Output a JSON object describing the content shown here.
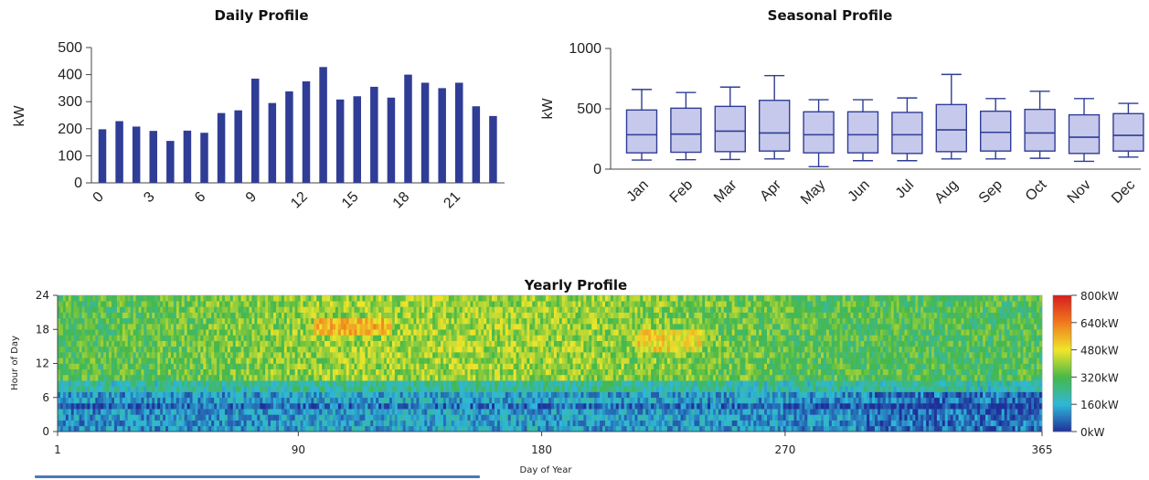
{
  "colors": {
    "bar_fill": "#2f3d96",
    "box_fill": "#c7c9ec",
    "box_stroke": "#2f3d96",
    "axis": "#444444"
  },
  "chart_data": [
    {
      "type": "bar",
      "title": "Daily Profile",
      "ylabel": "kW",
      "xlabel": "",
      "ylim": [
        0,
        500
      ],
      "yticks": [
        0,
        100,
        200,
        300,
        400,
        500
      ],
      "categories": [
        0,
        1,
        2,
        3,
        4,
        5,
        6,
        7,
        8,
        9,
        10,
        11,
        12,
        13,
        14,
        15,
        16,
        17,
        18,
        19,
        20,
        21,
        22,
        23
      ],
      "xtick_labels": [
        "0",
        "3",
        "6",
        "9",
        "12",
        "15",
        "18",
        "21"
      ],
      "values": [
        198,
        228,
        208,
        192,
        155,
        193,
        185,
        258,
        268,
        385,
        295,
        338,
        375,
        428,
        308,
        320,
        355,
        315,
        400,
        370,
        350,
        370,
        283,
        247
      ],
      "grid": false
    },
    {
      "type": "box",
      "title": "Seasonal Profile",
      "ylabel": "kW",
      "xlabel": "",
      "ylim": [
        0,
        1000
      ],
      "yticks": [
        0,
        500,
        1000
      ],
      "categories": [
        "Jan",
        "Feb",
        "Mar",
        "Apr",
        "May",
        "Jun",
        "Jul",
        "Aug",
        "Sep",
        "Oct",
        "Nov",
        "Dec"
      ],
      "boxes": [
        {
          "min": 75,
          "q1": 135,
          "median": 285,
          "q3": 490,
          "max": 660
        },
        {
          "min": 78,
          "q1": 140,
          "median": 290,
          "q3": 505,
          "max": 635
        },
        {
          "min": 80,
          "q1": 145,
          "median": 315,
          "q3": 520,
          "max": 680
        },
        {
          "min": 85,
          "q1": 150,
          "median": 300,
          "q3": 570,
          "max": 775
        },
        {
          "min": 20,
          "q1": 135,
          "median": 285,
          "q3": 475,
          "max": 575
        },
        {
          "min": 70,
          "q1": 135,
          "median": 285,
          "q3": 475,
          "max": 575
        },
        {
          "min": 70,
          "q1": 130,
          "median": 285,
          "q3": 470,
          "max": 590
        },
        {
          "min": 85,
          "q1": 145,
          "median": 325,
          "q3": 535,
          "max": 785
        },
        {
          "min": 85,
          "q1": 150,
          "median": 305,
          "q3": 480,
          "max": 585
        },
        {
          "min": 90,
          "q1": 150,
          "median": 300,
          "q3": 495,
          "max": 645
        },
        {
          "min": 65,
          "q1": 130,
          "median": 265,
          "q3": 450,
          "max": 585
        },
        {
          "min": 100,
          "q1": 150,
          "median": 280,
          "q3": 460,
          "max": 545
        }
      ],
      "grid": false
    },
    {
      "type": "heatmap",
      "title": "Yearly Profile",
      "xlabel": "Day of Year",
      "ylabel": "Hour of Day",
      "xlim": [
        1,
        365
      ],
      "ylim": [
        0,
        24
      ],
      "xticks": [
        1,
        90,
        180,
        270,
        365
      ],
      "yticks": [
        0,
        6,
        12,
        18,
        24
      ],
      "colorbar": {
        "ticks": [
          "0kW",
          "160kW",
          "320kW",
          "480kW",
          "640kW",
          "800kW"
        ],
        "range": [
          0,
          800
        ],
        "colors": [
          "#1f2f9a",
          "#2fb8d8",
          "#46b84a",
          "#f0e62a",
          "#f07a1e",
          "#d81e1e"
        ]
      }
    }
  ]
}
